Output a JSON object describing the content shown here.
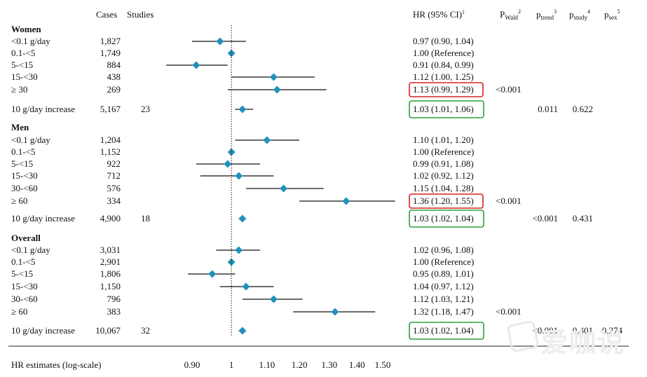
{
  "header": {
    "cases": "Cases",
    "studies": "Studies",
    "hr": "HR (95% CI)",
    "hr_sup": "1",
    "p_wald": "P",
    "p_wald_sub": "Wald",
    "p_wald_sup": "2",
    "p_trend": "p",
    "p_trend_sub": "trend",
    "p_trend_sup": "3",
    "p_study": "p",
    "p_study_sub": "study",
    "p_study_sup": "4",
    "p_sex": "p",
    "p_sex_sub": "sex",
    "p_sex_sup": "5"
  },
  "footer": {
    "xlabel": "HR estimates (log-scale)"
  },
  "colors": {
    "marker": "#2391b8",
    "highlight_red": "#d9211f",
    "highlight_green": "#2ba13a"
  },
  "watermark": {
    "text": "爱咖说"
  },
  "chart_data": {
    "type": "forest",
    "xscale": "log",
    "reference_line": 1,
    "xticks": [
      0.9,
      1,
      1.1,
      1.2,
      1.3,
      1.4,
      1.5
    ],
    "xtick_labels": [
      "0.90",
      "1",
      "1.10",
      "1.20",
      "1.30",
      "1.40",
      "1.50"
    ],
    "sections": [
      {
        "name": "Women",
        "rows": [
          {
            "label": "<0.1 g/day",
            "cases": "1,827",
            "hr": 0.97,
            "lo": 0.9,
            "hi": 1.04,
            "text": "0.97 (0.90, 1.04)"
          },
          {
            "label": "0.1-<5",
            "cases": "1,749",
            "hr": 1.0,
            "lo": 1.0,
            "hi": 1.0,
            "text": "1.00 (Reference)"
          },
          {
            "label": "5-<15",
            "cases": "884",
            "hr": 0.91,
            "lo": 0.84,
            "hi": 0.99,
            "text": "0.91 (0.84, 0.99)"
          },
          {
            "label": "15-<30",
            "cases": "438",
            "hr": 1.12,
            "lo": 1.0,
            "hi": 1.25,
            "text": "1.12 (1.00, 1.25)"
          },
          {
            "label": "≥ 30",
            "cases": "269",
            "hr": 1.13,
            "lo": 0.99,
            "hi": 1.29,
            "text": "1.13 (0.99, 1.29)",
            "box": "red",
            "p_wald": "<0.001"
          }
        ],
        "increase": {
          "label": "10 g/day increase",
          "cases": "5,167",
          "studies": "23",
          "hr": 1.03,
          "lo": 1.01,
          "hi": 1.06,
          "text": "1.03 (1.01, 1.06)",
          "box": "green",
          "p_trend": "0.011",
          "p_study": "0.622"
        }
      },
      {
        "name": "Men",
        "rows": [
          {
            "label": "<0.1 g/day",
            "cases": "1,204",
            "hr": 1.1,
            "lo": 1.01,
            "hi": 1.2,
            "text": "1.10 (1.01, 1.20)"
          },
          {
            "label": "0.1-<5",
            "cases": "1,152",
            "hr": 1.0,
            "lo": 1.0,
            "hi": 1.0,
            "text": "1.00 (Reference)"
          },
          {
            "label": "5-<15",
            "cases": "922",
            "hr": 0.99,
            "lo": 0.91,
            "hi": 1.08,
            "text": "0.99 (0.91, 1.08)"
          },
          {
            "label": "15-<30",
            "cases": "712",
            "hr": 1.02,
            "lo": 0.92,
            "hi": 1.12,
            "text": "1.02 (0.92, 1.12)"
          },
          {
            "label": "30-<60",
            "cases": "576",
            "hr": 1.15,
            "lo": 1.04,
            "hi": 1.28,
            "text": "1.15 (1.04, 1.28)"
          },
          {
            "label": "≥ 60",
            "cases": "334",
            "hr": 1.36,
            "lo": 1.2,
            "hi": 1.55,
            "text": "1.36 (1.20, 1.55)",
            "box": "red",
            "p_wald": "<0.001"
          }
        ],
        "increase": {
          "label": "10 g/day increase",
          "cases": "4,900",
          "studies": "18",
          "hr": 1.03,
          "lo": 1.02,
          "hi": 1.04,
          "text": "1.03 (1.02, 1.04)",
          "box": "green",
          "p_trend": "<0.001",
          "p_study": "0.431"
        }
      },
      {
        "name": "Overall",
        "rows": [
          {
            "label": "<0.1 g/day",
            "cases": "3,031",
            "hr": 1.02,
            "lo": 0.96,
            "hi": 1.08,
            "text": "1.02 (0.96, 1.08)"
          },
          {
            "label": "0.1-<5",
            "cases": "2,901",
            "hr": 1.0,
            "lo": 1.0,
            "hi": 1.0,
            "text": "1.00 (Reference)"
          },
          {
            "label": "5-<15",
            "cases": "1,806",
            "hr": 0.95,
            "lo": 0.89,
            "hi": 1.01,
            "text": "0.95 (0.89, 1.01)"
          },
          {
            "label": "15-<30",
            "cases": "1,150",
            "hr": 1.04,
            "lo": 0.97,
            "hi": 1.12,
            "text": "1.04 (0.97, 1.12)"
          },
          {
            "label": "30-<60",
            "cases": "796",
            "hr": 1.12,
            "lo": 1.03,
            "hi": 1.21,
            "text": "1.12 (1.03, 1.21)"
          },
          {
            "label": "≥ 60",
            "cases": "383",
            "hr": 1.32,
            "lo": 1.18,
            "hi": 1.47,
            "text": "1.32 (1.18, 1.47)",
            "p_wald": "<0.001"
          }
        ],
        "increase": {
          "label": "10 g/day increase",
          "cases": "10,067",
          "studies": "32",
          "hr": 1.03,
          "lo": 1.02,
          "hi": 1.04,
          "text": "1.03 (1.02, 1.04)",
          "box": "green",
          "p_trend": "<0.001",
          "p_study": "0.401",
          "p_sex": "0.274"
        }
      }
    ]
  }
}
